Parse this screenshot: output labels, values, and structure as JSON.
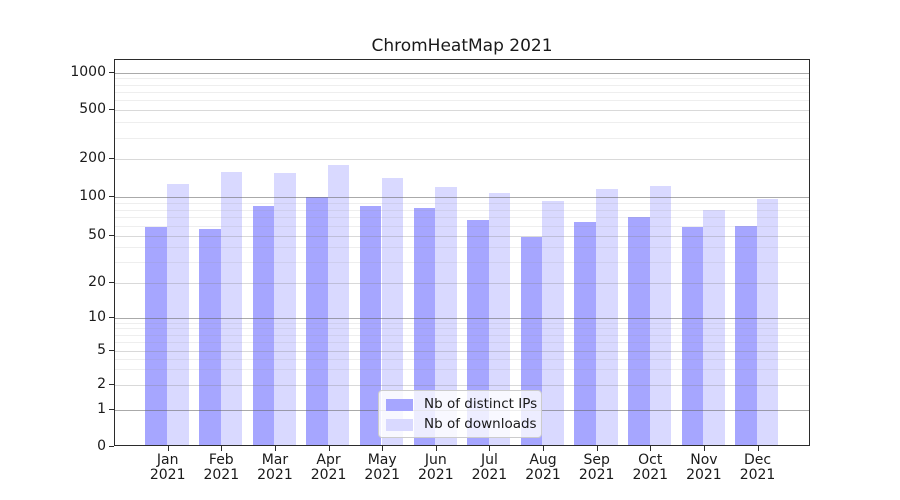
{
  "figure": {
    "title": "ChromHeatMap 2021",
    "background_color": "#ffffff"
  },
  "chart_data": {
    "type": "bar",
    "title": "ChromHeatMap 2021",
    "categories": [
      "Jan 2021",
      "Feb 2021",
      "Mar 2021",
      "Apr 2021",
      "May 2021",
      "Jun 2021",
      "Jul 2021",
      "Aug 2021",
      "Sep 2021",
      "Oct 2021",
      "Nov 2021",
      "Dec 2021"
    ],
    "x_tick_months": [
      "Jan",
      "Feb",
      "Mar",
      "Apr",
      "May",
      "Jun",
      "Jul",
      "Aug",
      "Sep",
      "Oct",
      "Nov",
      "Dec"
    ],
    "x_tick_year": "2021",
    "series": [
      {
        "name": "Nb of distinct IPs",
        "color": "#a6a6ff",
        "values": [
          57,
          55,
          82,
          96,
          83,
          79,
          64,
          47,
          62,
          68,
          57,
          58
        ]
      },
      {
        "name": "Nb of downloads",
        "color": "#d9d9ff",
        "values": [
          123,
          152,
          149,
          175,
          136,
          117,
          103,
          90,
          112,
          119,
          77,
          93
        ]
      }
    ],
    "xlabel": "",
    "ylabel": "",
    "yscale": "symlog",
    "yticks": [
      0,
      1,
      2,
      5,
      10,
      20,
      50,
      100,
      200,
      500,
      1000
    ],
    "ytick_labels": [
      "0",
      "1",
      "2",
      "5",
      "10",
      "20",
      "50",
      "100",
      "200",
      "500",
      "1000"
    ],
    "ylim": [
      0,
      1300
    ],
    "grid": "horizontal major gray + light sub-ticks + faint log minors",
    "legend_position": "lower center inside plot",
    "legend": [
      "Nb of distinct IPs",
      "Nb of downloads"
    ]
  },
  "legend": {
    "items": [
      {
        "label": "Nb of distinct IPs",
        "color": "#a6a6ff"
      },
      {
        "label": "Nb of downloads",
        "color": "#d9d9ff"
      }
    ]
  }
}
